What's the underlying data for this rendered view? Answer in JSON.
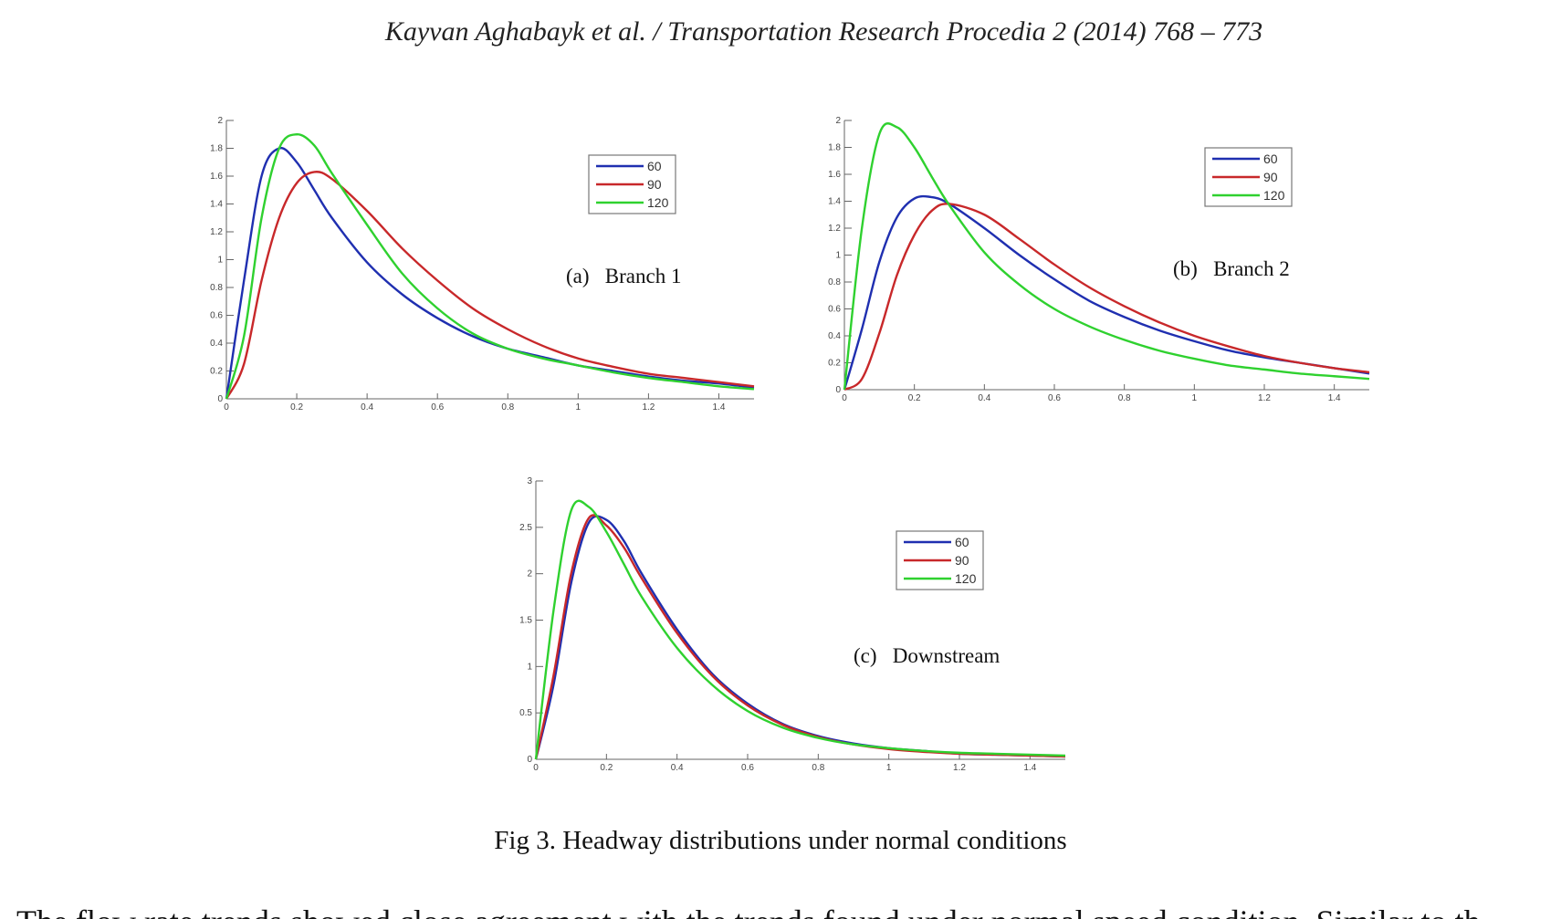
{
  "header": {
    "running_title": "Kayvan Aghabayk et al. / Transportation Research Procedia 2 (2014) 768 – 773"
  },
  "caption": "Fig 3. Headway distributions under normal conditions",
  "body_text_partial": "The flow rate trends showed close agreement with the trends found under normal speed condition. Similar to th",
  "colors": {
    "60": "#1f2fb0",
    "90": "#c8282a",
    "120": "#2fd12f"
  },
  "chart_data": [
    {
      "type": "line",
      "panel_label": "(a)   Branch 1",
      "xlim": [
        0,
        1.5
      ],
      "ylim": [
        0,
        2
      ],
      "xticks": [
        0,
        0.2,
        0.4,
        0.6,
        0.8,
        1,
        1.2,
        1.4
      ],
      "xtick_labels": [
        "0",
        "0.2",
        "0.4",
        "0.6",
        "0.8",
        "1",
        "1.2",
        "1.4"
      ],
      "yticks": [
        0,
        0.2,
        0.4,
        0.6,
        0.8,
        1,
        1.2,
        1.4,
        1.6,
        1.8,
        2
      ],
      "ytick_labels": [
        "0",
        "0.2",
        "0.4",
        "0.6",
        "0.8",
        "1",
        "1.2",
        "1.4",
        "1.6",
        "1.8",
        "2"
      ],
      "legend_position": "top-right",
      "series": [
        {
          "name": "60",
          "color": "#1f2fb0",
          "x": [
            0,
            0.05,
            0.1,
            0.15,
            0.2,
            0.25,
            0.3,
            0.4,
            0.5,
            0.6,
            0.7,
            0.8,
            0.9,
            1,
            1.1,
            1.2,
            1.3,
            1.4,
            1.5
          ],
          "values": [
            0,
            0.85,
            1.6,
            1.8,
            1.7,
            1.5,
            1.3,
            0.98,
            0.75,
            0.58,
            0.45,
            0.36,
            0.3,
            0.24,
            0.2,
            0.16,
            0.13,
            0.11,
            0.08
          ]
        },
        {
          "name": "90",
          "color": "#c8282a",
          "x": [
            0,
            0.05,
            0.1,
            0.15,
            0.2,
            0.25,
            0.3,
            0.4,
            0.5,
            0.6,
            0.7,
            0.8,
            0.9,
            1,
            1.1,
            1.2,
            1.3,
            1.4,
            1.5
          ],
          "values": [
            0,
            0.25,
            0.85,
            1.3,
            1.55,
            1.63,
            1.58,
            1.35,
            1.08,
            0.85,
            0.65,
            0.5,
            0.38,
            0.29,
            0.23,
            0.18,
            0.15,
            0.12,
            0.09
          ]
        },
        {
          "name": "120",
          "color": "#2fd12f",
          "x": [
            0,
            0.05,
            0.1,
            0.15,
            0.2,
            0.25,
            0.3,
            0.4,
            0.5,
            0.6,
            0.7,
            0.8,
            0.9,
            1,
            1.1,
            1.2,
            1.3,
            1.4,
            1.5
          ],
          "values": [
            0,
            0.45,
            1.3,
            1.8,
            1.9,
            1.82,
            1.62,
            1.25,
            0.9,
            0.65,
            0.47,
            0.36,
            0.29,
            0.24,
            0.19,
            0.15,
            0.12,
            0.09,
            0.07
          ]
        }
      ]
    },
    {
      "type": "line",
      "panel_label": "(b)   Branch 2",
      "xlim": [
        0,
        1.5
      ],
      "ylim": [
        0,
        2
      ],
      "xticks": [
        0,
        0.2,
        0.4,
        0.6,
        0.8,
        1,
        1.2,
        1.4
      ],
      "xtick_labels": [
        "0",
        "0.2",
        "0.4",
        "0.6",
        "0.8",
        "1",
        "1.2",
        "1.4"
      ],
      "yticks": [
        0,
        0.2,
        0.4,
        0.6,
        0.8,
        1,
        1.2,
        1.4,
        1.6,
        1.8,
        2
      ],
      "ytick_labels": [
        "0",
        "0.2",
        "0.4",
        "0.6",
        "0.8",
        "1",
        "1.2",
        "1.4",
        "1.6",
        "1.8",
        "2"
      ],
      "legend_position": "top-right",
      "series": [
        {
          "name": "60",
          "color": "#1f2fb0",
          "x": [
            0,
            0.05,
            0.1,
            0.15,
            0.2,
            0.25,
            0.3,
            0.4,
            0.5,
            0.6,
            0.7,
            0.8,
            0.9,
            1,
            1.1,
            1.2,
            1.3,
            1.4,
            1.5
          ],
          "values": [
            0,
            0.45,
            0.95,
            1.28,
            1.42,
            1.43,
            1.38,
            1.2,
            1.0,
            0.82,
            0.66,
            0.54,
            0.44,
            0.36,
            0.29,
            0.24,
            0.2,
            0.16,
            0.12
          ]
        },
        {
          "name": "90",
          "color": "#c8282a",
          "x": [
            0,
            0.05,
            0.1,
            0.15,
            0.2,
            0.25,
            0.3,
            0.4,
            0.5,
            0.6,
            0.7,
            0.8,
            0.9,
            1,
            1.1,
            1.2,
            1.3,
            1.4,
            1.5
          ],
          "values": [
            0,
            0.08,
            0.42,
            0.85,
            1.15,
            1.33,
            1.38,
            1.3,
            1.12,
            0.93,
            0.76,
            0.62,
            0.5,
            0.4,
            0.32,
            0.25,
            0.2,
            0.16,
            0.13
          ]
        },
        {
          "name": "120",
          "color": "#2fd12f",
          "x": [
            0,
            0.05,
            0.1,
            0.15,
            0.2,
            0.25,
            0.3,
            0.4,
            0.5,
            0.6,
            0.7,
            0.8,
            0.9,
            1,
            1.1,
            1.2,
            1.3,
            1.4,
            1.5
          ],
          "values": [
            0,
            1.2,
            1.9,
            1.95,
            1.8,
            1.58,
            1.37,
            1.02,
            0.78,
            0.6,
            0.47,
            0.37,
            0.29,
            0.23,
            0.18,
            0.15,
            0.12,
            0.1,
            0.08
          ]
        }
      ]
    },
    {
      "type": "line",
      "panel_label": "(c)   Downstream",
      "xlim": [
        0,
        1.5
      ],
      "ylim": [
        0,
        3
      ],
      "xticks": [
        0,
        0.2,
        0.4,
        0.6,
        0.8,
        1,
        1.2,
        1.4
      ],
      "xtick_labels": [
        "0",
        "0.2",
        "0.4",
        "0.6",
        "0.8",
        "1",
        "1.2",
        "1.4"
      ],
      "yticks": [
        0,
        0.5,
        1,
        1.5,
        2,
        2.5,
        3
      ],
      "ytick_labels": [
        "0",
        "0.5",
        "1",
        "1.5",
        "2",
        "2.5",
        "3"
      ],
      "legend_position": "top-right",
      "series": [
        {
          "name": "60",
          "color": "#1f2fb0",
          "x": [
            0,
            0.05,
            0.1,
            0.15,
            0.2,
            0.25,
            0.3,
            0.4,
            0.5,
            0.6,
            0.7,
            0.8,
            0.9,
            1,
            1.1,
            1.2,
            1.3,
            1.4,
            1.5
          ],
          "values": [
            0,
            0.8,
            1.9,
            2.55,
            2.58,
            2.35,
            2.0,
            1.4,
            0.92,
            0.6,
            0.38,
            0.25,
            0.17,
            0.12,
            0.09,
            0.06,
            0.05,
            0.04,
            0.03
          ]
        },
        {
          "name": "90",
          "color": "#c8282a",
          "x": [
            0,
            0.05,
            0.1,
            0.15,
            0.2,
            0.25,
            0.3,
            0.4,
            0.5,
            0.6,
            0.7,
            0.8,
            0.9,
            1,
            1.1,
            1.2,
            1.3,
            1.4,
            1.5
          ],
          "values": [
            0,
            0.9,
            2.0,
            2.6,
            2.52,
            2.28,
            1.95,
            1.36,
            0.9,
            0.58,
            0.37,
            0.24,
            0.16,
            0.11,
            0.08,
            0.06,
            0.05,
            0.04,
            0.03
          ]
        },
        {
          "name": "120",
          "color": "#2fd12f",
          "x": [
            0,
            0.05,
            0.1,
            0.15,
            0.2,
            0.25,
            0.3,
            0.4,
            0.5,
            0.6,
            0.7,
            0.8,
            0.9,
            1,
            1.1,
            1.2,
            1.3,
            1.4,
            1.5
          ],
          "values": [
            0,
            1.6,
            2.68,
            2.72,
            2.45,
            2.1,
            1.75,
            1.2,
            0.8,
            0.52,
            0.34,
            0.23,
            0.16,
            0.12,
            0.09,
            0.07,
            0.06,
            0.05,
            0.04
          ]
        }
      ]
    }
  ]
}
